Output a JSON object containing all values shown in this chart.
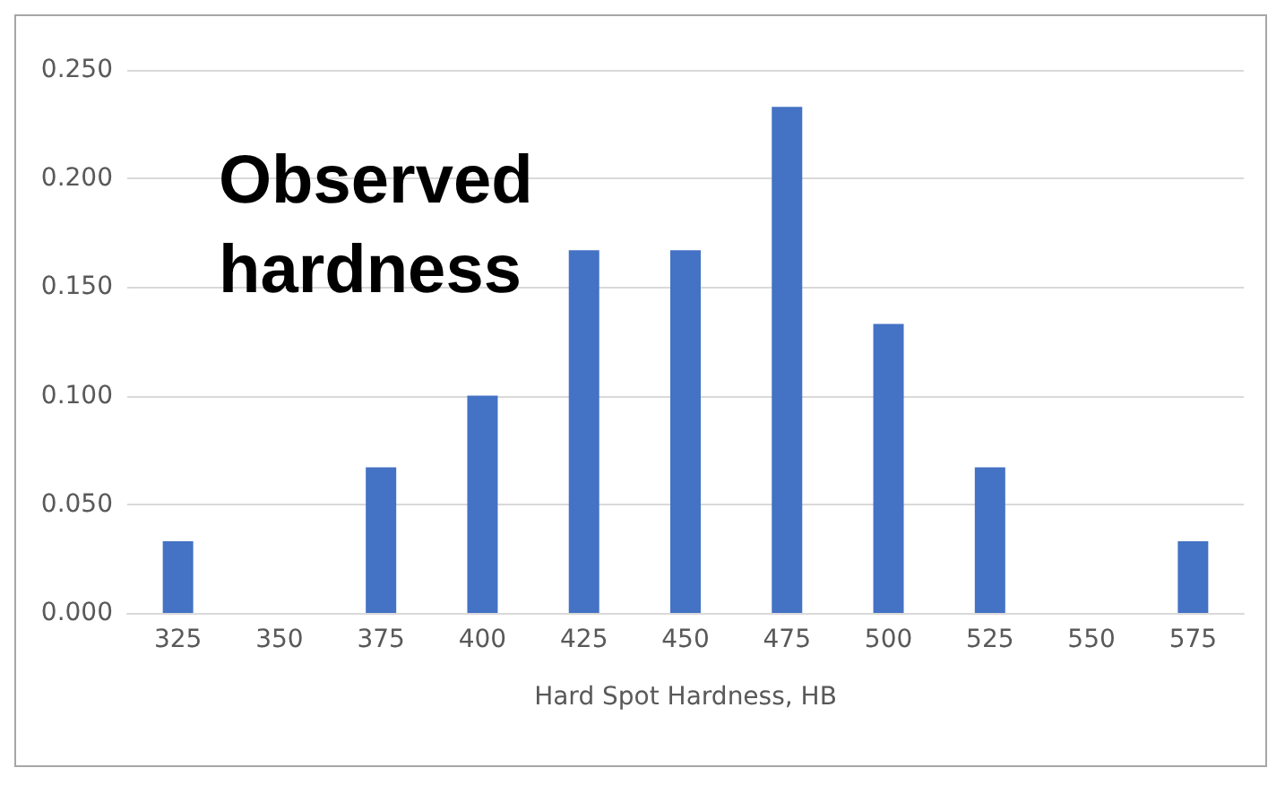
{
  "chart_data": {
    "type": "bar",
    "title": "Observed hardness",
    "xlabel": "Hard Spot Hardness, HB",
    "categories": [
      "325",
      "350",
      "375",
      "400",
      "425",
      "450",
      "475",
      "500",
      "525",
      "550",
      "575"
    ],
    "values": [
      0.033,
      0,
      0.067,
      0.1,
      0.167,
      0.167,
      0.233,
      0.133,
      0.067,
      0,
      0.033
    ],
    "color": "#4472c4",
    "ylim": [
      0,
      0.25
    ],
    "yticks": [
      {
        "value": 0,
        "label": "0.000"
      },
      {
        "value": 0.05,
        "label": "0.050"
      },
      {
        "value": 0.1,
        "label": "0.100"
      },
      {
        "value": 0.15,
        "label": "0.150"
      },
      {
        "value": 0.2,
        "label": "0.200"
      },
      {
        "value": 0.25,
        "label": "0.250"
      }
    ],
    "grid": "y"
  }
}
